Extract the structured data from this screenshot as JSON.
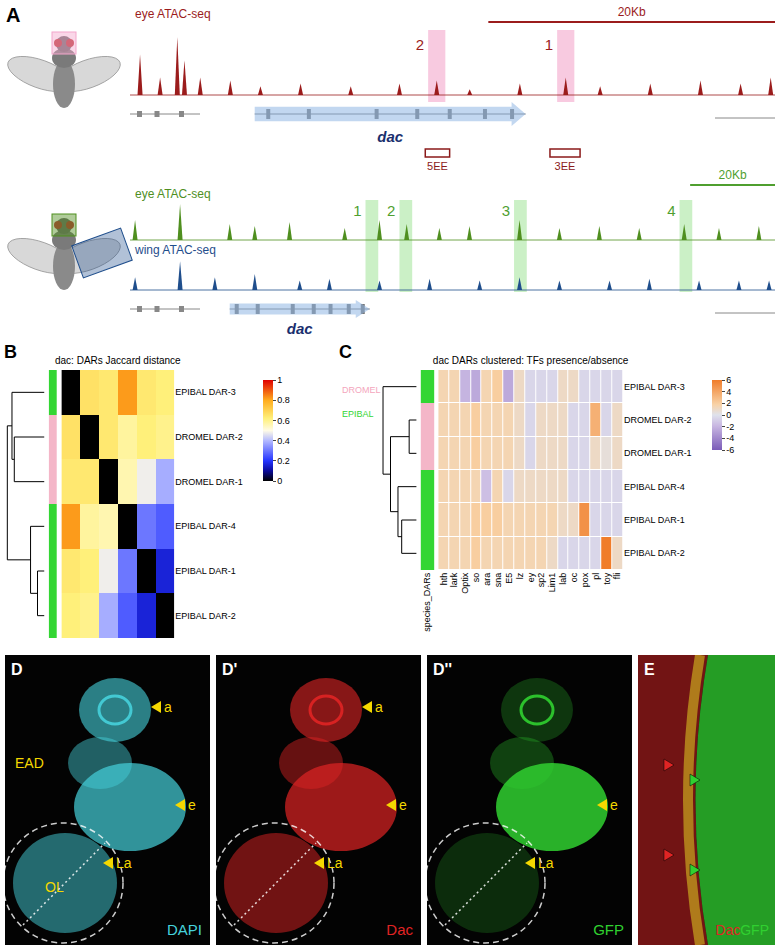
{
  "panel_A": {
    "letter": "A",
    "top": {
      "region_kb": [
        0,
        45
      ],
      "scale_bar": {
        "label": "20Kb",
        "kb": 20,
        "color": "#9b1c1c"
      },
      "tracks": [
        {
          "name": "eye ATAC-seq",
          "color": "#9b1c1c",
          "peaks": [
            [
              0.7,
              0.7
            ],
            [
              2.1,
              0.3
            ],
            [
              3.3,
              1.0
            ],
            [
              3.8,
              0.6
            ],
            [
              4.9,
              0.3
            ],
            [
              7.0,
              0.25
            ],
            [
              9.1,
              0.15
            ],
            [
              11.9,
              0.2
            ],
            [
              15.4,
              0.15
            ],
            [
              18.8,
              0.2
            ],
            [
              21.4,
              0.25
            ],
            [
              23.7,
              0.1
            ],
            [
              27.2,
              0.2
            ],
            [
              30.4,
              0.3
            ],
            [
              32.8,
              0.15
            ],
            [
              36.3,
              0.2
            ],
            [
              39.8,
              0.25
            ],
            [
              42.6,
              0.2
            ],
            [
              44.7,
              0.3
            ]
          ]
        }
      ],
      "highlight_color": "#f3a6cb",
      "label_color": "#9b1c1c",
      "highlights": [
        {
          "label": "2",
          "start": 20.8,
          "end": 22.0
        },
        {
          "label": "1",
          "start": 29.8,
          "end": 31.0
        }
      ],
      "gene": {
        "name": "dac",
        "color": "#1a2f6e",
        "start": 8.7,
        "end": 27.6
      },
      "element_color": "#8b1a1a",
      "elements": [
        {
          "label": "5EE",
          "start": 20.6,
          "end": 22.3
        },
        {
          "label": "3EE",
          "start": 29.3,
          "end": 31.4
        }
      ]
    },
    "bottom": {
      "region_kb": [
        0,
        152
      ],
      "scale_bar": {
        "label": "20Kb",
        "kb": 20,
        "color": "#4f9f2f"
      },
      "tracks": [
        {
          "name": "eye ATAC-seq",
          "color": "#4f8f1f",
          "peaks": [
            [
              1.2,
              0.5
            ],
            [
              11.8,
              0.9
            ],
            [
              23.5,
              0.4
            ],
            [
              29.4,
              0.35
            ],
            [
              37.6,
              0.45
            ],
            [
              50.6,
              0.3
            ],
            [
              58.8,
              0.5
            ],
            [
              65.2,
              0.4
            ],
            [
              72.9,
              0.3
            ],
            [
              80.0,
              0.35
            ],
            [
              91.8,
              0.5
            ],
            [
              101.2,
              0.3
            ],
            [
              110.6,
              0.35
            ],
            [
              120.0,
              0.3
            ],
            [
              130.6,
              0.4
            ],
            [
              138.8,
              0.3
            ],
            [
              148.2,
              0.35
            ]
          ]
        },
        {
          "name": "wing ATAC-seq",
          "color": "#1f4e8c",
          "peaks": [
            [
              1.2,
              0.4
            ],
            [
              11.8,
              0.9
            ],
            [
              20.0,
              0.4
            ],
            [
              29.4,
              0.5
            ],
            [
              40.0,
              0.3
            ],
            [
              47.0,
              0.35
            ],
            [
              58.8,
              0.3
            ],
            [
              70.6,
              0.35
            ],
            [
              82.4,
              0.3
            ],
            [
              91.8,
              0.4
            ],
            [
              101.2,
              0.3
            ],
            [
              113.0,
              0.3
            ],
            [
              122.4,
              0.35
            ],
            [
              134.1,
              0.3
            ],
            [
              143.5,
              0.3
            ],
            [
              150.6,
              0.3
            ]
          ]
        }
      ],
      "highlight_color": "#a8e6a0",
      "label_color": "#4f9f2f",
      "highlights": [
        {
          "label": "1",
          "start": 55.5,
          "end": 58.5
        },
        {
          "label": "2",
          "start": 63.5,
          "end": 66.5
        },
        {
          "label": "3",
          "start": 90.5,
          "end": 93.5
        },
        {
          "label": "4",
          "start": 129.5,
          "end": 132.5
        }
      ],
      "gene": {
        "name": "dac",
        "color": "#1a2f6e",
        "start": 23.5,
        "end": 56.5
      },
      "element_color": "#8b1a1a",
      "elements": []
    }
  },
  "chart_data": [
    {
      "type": "heatmap",
      "panel_label": "B",
      "title": "dac: DARs Jaccard distance",
      "rows": [
        "EPIBAL DAR-3",
        "DROMEL DAR-2",
        "DROMEL DAR-1",
        "EPIBAL DAR-4",
        "EPIBAL DAR-1",
        "EPIBAL DAR-2"
      ],
      "tick_labels": "y",
      "cells": [
        [
          0,
          0.66,
          0.64,
          0.82,
          0.64,
          0.62
        ],
        [
          0.66,
          0,
          0.64,
          0.58,
          0.62,
          0.6
        ],
        [
          0.64,
          0.64,
          0,
          0.56,
          0.48,
          0.38
        ],
        [
          0.82,
          0.58,
          0.56,
          0,
          0.3,
          0.26
        ],
        [
          0.64,
          0.62,
          0.48,
          0.3,
          0,
          0.16
        ],
        [
          0.62,
          0.6,
          0.38,
          0.26,
          0.16,
          0
        ]
      ],
      "colorbar": {
        "range": [
          0,
          1
        ],
        "ticks": [
          0,
          0.2,
          0.4,
          0.6,
          0.8,
          1
        ]
      },
      "strip_colors": [
        "#33d633",
        "#f4b6c8",
        "#f4b6c8",
        "#33d633",
        "#33d633",
        "#33d633"
      ],
      "dendrogram": {
        "merges": [
          [
            4,
            5,
            0.15
          ],
          [
            3,
            6,
            0.3
          ],
          [
            1,
            2,
            0.65
          ],
          [
            0,
            8,
            0.7
          ],
          [
            7,
            9,
            0.8
          ]
        ],
        "lim": [
          0,
          0.85
        ]
      }
    },
    {
      "type": "heatmap",
      "panel_label": "C",
      "title": "dac DARs clustered: TFs presence/absence",
      "rows": [
        "EPIBAL DAR-3",
        "DROMEL DAR-2",
        "DROMEL DAR-1",
        "EPIBAL DAR-4",
        "EPIBAL DAR-1",
        "EPIBAL DAR-2"
      ],
      "columns": [
        "hth",
        "lark",
        "Optix",
        "so",
        "ara",
        "sna",
        "E5",
        "lz",
        "ey",
        "sp2",
        "Lim1",
        "lab",
        "oc",
        "pox",
        "pl",
        "toy",
        "fli"
      ],
      "tick_labels": true,
      "cells": [
        [
          1.5,
          1.5,
          -2,
          -2.5,
          1.5,
          2,
          -2.5,
          1,
          -0.5,
          -0.5,
          -0.5,
          1,
          1,
          -0.5,
          -0.5,
          -0.5,
          -0.5
        ],
        [
          1.5,
          1.5,
          1.5,
          2,
          1.5,
          1.5,
          1.5,
          1,
          -0.5,
          1,
          1,
          1,
          -0.5,
          -0.5,
          3.5,
          -0.5,
          1
        ],
        [
          1.5,
          1.5,
          1.5,
          2,
          1.5,
          1.5,
          1.5,
          1,
          -0.5,
          1,
          1,
          1,
          -0.5,
          -0.5,
          1,
          0.5,
          1
        ],
        [
          1.5,
          1.5,
          1.5,
          1.5,
          -1.5,
          1.5,
          -0.5,
          1,
          1,
          1,
          1,
          1,
          -0.5,
          -0.5,
          -0.5,
          -0.5,
          -0.5
        ],
        [
          1.5,
          1.5,
          1.5,
          2,
          2,
          2,
          1.5,
          1.5,
          1.5,
          1.5,
          1.5,
          1,
          1,
          5,
          -0.5,
          -0.5,
          -0.5
        ],
        [
          1.5,
          1.5,
          1.5,
          2,
          1.5,
          1.5,
          1.5,
          1.5,
          1.5,
          1.5,
          1,
          -0.5,
          -0.5,
          -0.5,
          -0.5,
          6,
          1
        ]
      ],
      "colorbar": {
        "range": [
          -6,
          6
        ],
        "ticks": [
          -6,
          -4,
          -2,
          0,
          2,
          4,
          6
        ]
      },
      "strip_label": "species_DARs",
      "strip_colors": [
        "#33d633",
        "#f4b6c8",
        "#f4b6c8",
        "#33d633",
        "#33d633",
        "#33d633"
      ],
      "group_legend": [
        {
          "name": "DROMEL",
          "color": "#f4a6bd"
        },
        {
          "name": "EPIBAL",
          "color": "#33d633"
        }
      ],
      "dendrogram": {
        "merges": [
          [
            1,
            2,
            2
          ],
          [
            4,
            5,
            4
          ],
          [
            3,
            7,
            5
          ],
          [
            6,
            8,
            7
          ],
          [
            0,
            9,
            9
          ]
        ],
        "lim": [
          0,
          10
        ]
      }
    }
  ],
  "panel_D": {
    "label_color": "#f5d800",
    "labels": [
      "EAD",
      "a",
      "e",
      "OL",
      "La"
    ],
    "images": [
      {
        "letter": "D",
        "channel": "DAPI",
        "color": "#46d2dc",
        "labels": [
          "EAD",
          "a",
          "e",
          "OL",
          "La"
        ]
      },
      {
        "letter": "D'",
        "channel": "Dac",
        "color": "#e02424",
        "labels": [
          "a",
          "e",
          "La"
        ]
      },
      {
        "letter": "D''",
        "channel": "GFP",
        "color": "#30d030",
        "labels": [
          "e",
          "La"
        ]
      }
    ]
  },
  "panel_E": {
    "letter": "E",
    "channels": [
      {
        "text": "Dac",
        "color": "#e02424"
      },
      {
        "text": "GFP",
        "color": "#30d030"
      }
    ]
  }
}
